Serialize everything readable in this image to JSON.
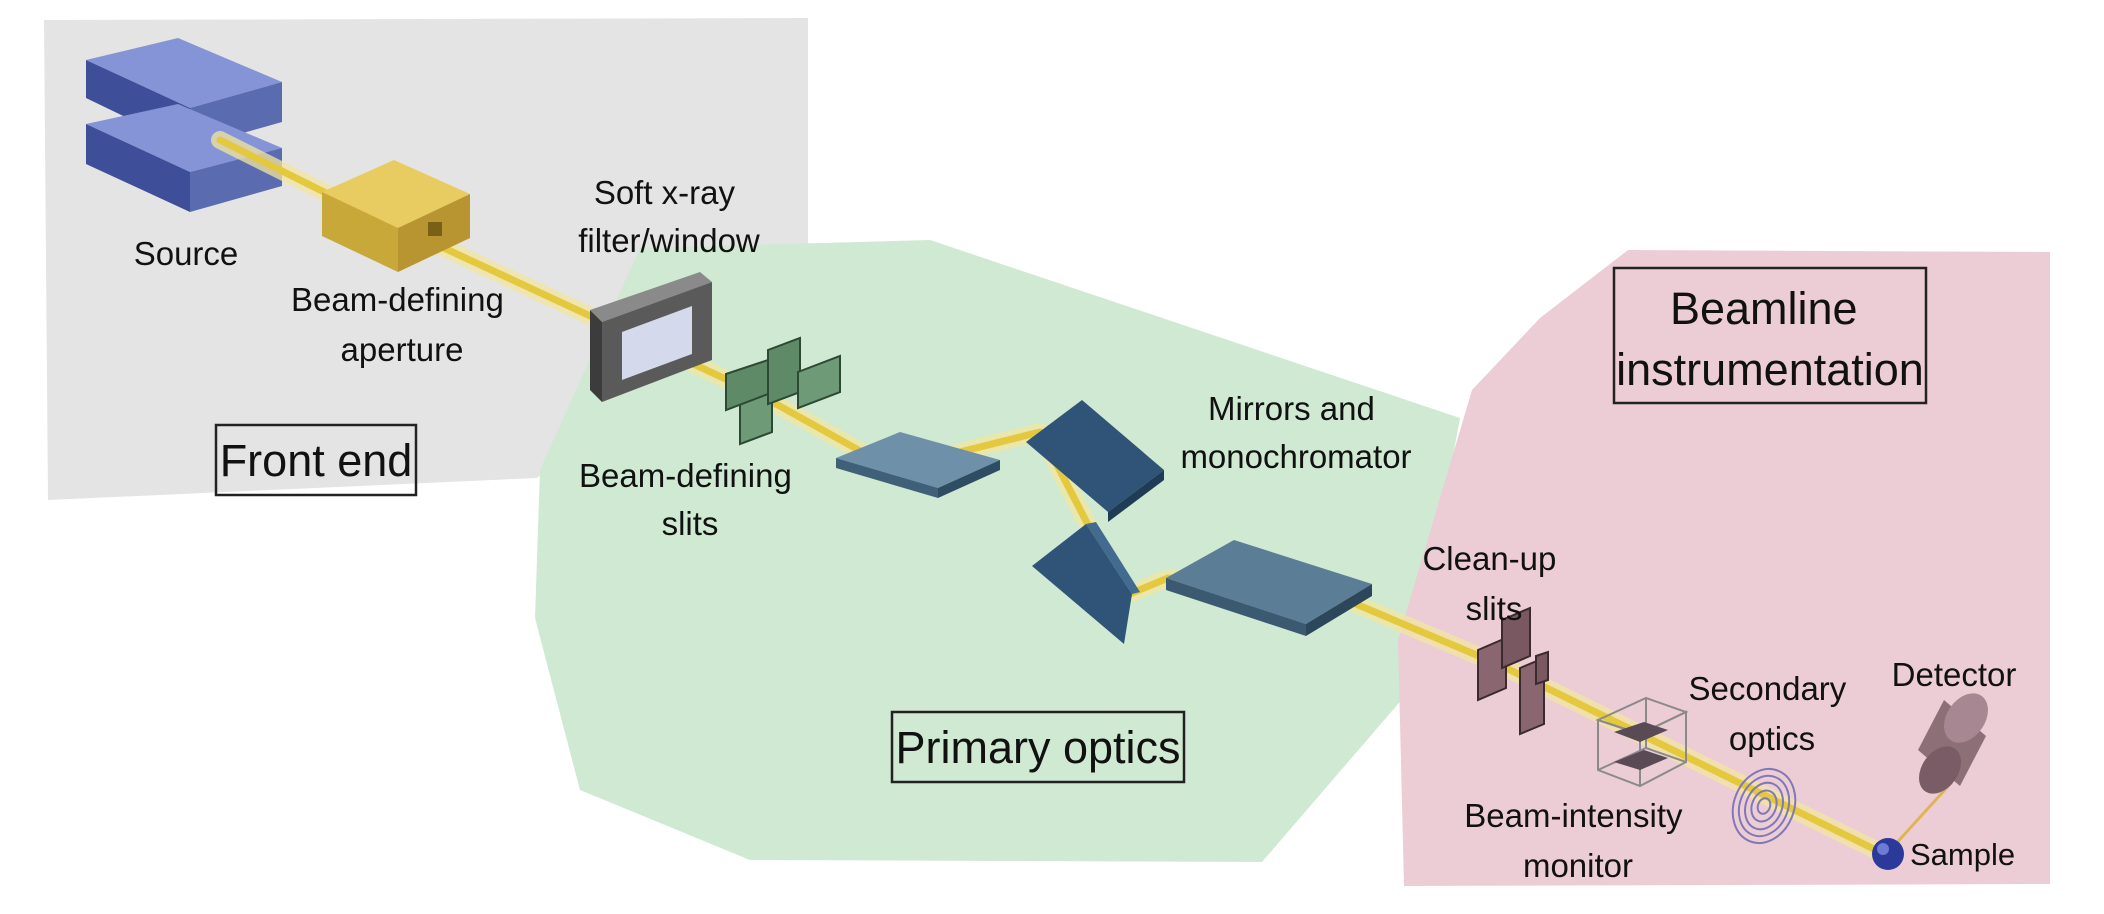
{
  "regions": {
    "front_end": {
      "title": "Front end",
      "fill": "#e4e4e4"
    },
    "primary_optics": {
      "title": "Primary optics",
      "fill": "#cfe9d2"
    },
    "beamline_instrumentation": {
      "title_line1": "Beamline",
      "title_line2": "instrumentation",
      "fill": "#eccdd6"
    }
  },
  "components": {
    "source": "Source",
    "aperture_line1": "Beam-defining",
    "aperture_line2": "aperture",
    "filter_line1": "Soft x-ray",
    "filter_line2": "filter/window",
    "slits_line1": "Beam-defining",
    "slits_line2": "slits",
    "mirrors_line1": "Mirrors and",
    "mirrors_line2": "monochromator",
    "cleanup_line1": "Clean-up",
    "cleanup_line2": "slits",
    "monitor_line1": "Beam-intensity",
    "monitor_line2": "monitor",
    "secondary_line1": "Secondary",
    "secondary_line2": "optics",
    "detector": "Detector",
    "sample": "Sample"
  },
  "colors": {
    "beam": "#e8d260",
    "beam_glow": "#f3e6a0",
    "source_blue": "#5a6bb0",
    "aperture_gold": "#d4b444",
    "slit_green": "#5f8a68",
    "mirror_blue": "#2f5477",
    "mirror_slate": "#5c7d96",
    "pink_slit": "#8a6670",
    "detector_mauve": "#8d6f78"
  }
}
